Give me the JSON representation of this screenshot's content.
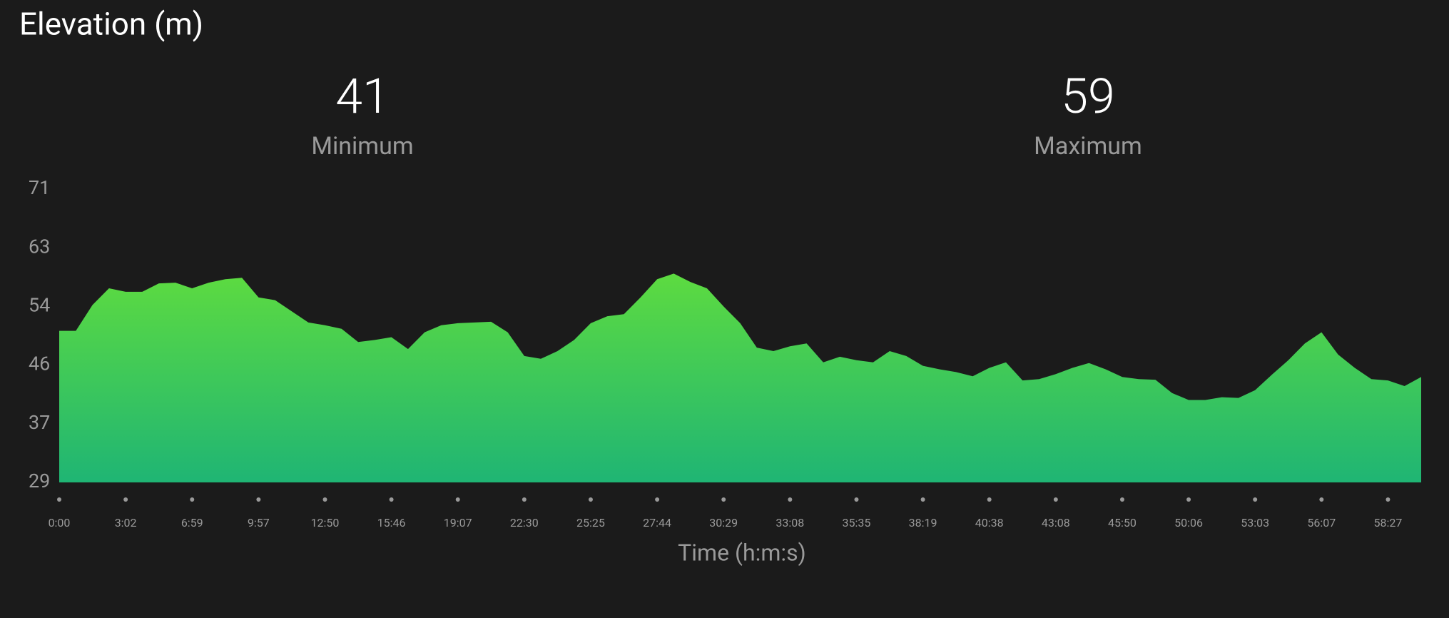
{
  "title": "Elevation (m)",
  "stats": [
    {
      "value": 41,
      "label": "Minimum"
    },
    {
      "value": 59,
      "label": "Maximum"
    }
  ],
  "chart_data": {
    "type": "area",
    "x_label": "Time (h:m:s)",
    "categories": [
      "0:00",
      null,
      null,
      null,
      "3:02",
      null,
      null,
      null,
      "6:59",
      null,
      null,
      null,
      "9:57",
      null,
      null,
      null,
      "12:50",
      null,
      null,
      null,
      "15:46",
      null,
      null,
      null,
      "19:07",
      null,
      null,
      null,
      "22:30",
      null,
      null,
      null,
      "25:25",
      null,
      null,
      null,
      "27:44",
      null,
      null,
      null,
      "30:29",
      null,
      null,
      null,
      "33:08",
      null,
      null,
      null,
      "35:35",
      null,
      null,
      null,
      "38:19",
      null,
      null,
      null,
      "40:38",
      null,
      null,
      null,
      "43:08",
      null,
      null,
      null,
      "45:50",
      null,
      null,
      null,
      "50:06",
      null,
      null,
      null,
      "53:03",
      null,
      null,
      null,
      "56:07",
      null,
      null,
      null,
      "58:27",
      null,
      null
    ],
    "values": [
      50.7,
      50.7,
      54.4,
      56.8,
      56.3,
      56.3,
      57.5,
      57.6,
      56.8,
      57.6,
      58.1,
      58.3,
      55.5,
      55.1,
      53.5,
      51.9,
      51.5,
      51.0,
      49.1,
      49.4,
      49.8,
      48.1,
      50.5,
      51.5,
      51.8,
      51.9,
      52.0,
      50.5,
      47.1,
      46.7,
      47.8,
      49.4,
      51.8,
      52.8,
      53.1,
      55.5,
      58.1,
      58.9,
      57.7,
      56.8,
      54.2,
      51.8,
      48.3,
      47.8,
      48.5,
      48.9,
      46.2,
      47.0,
      46.5,
      46.2,
      47.8,
      47.1,
      45.7,
      45.2,
      44.8,
      44.2,
      45.4,
      46.2,
      43.6,
      43.8,
      44.5,
      45.4,
      46.1,
      45.2,
      44.1,
      43.8,
      43.7,
      41.8,
      40.8,
      40.8,
      41.2,
      41.1,
      42.2,
      44.4,
      46.5,
      48.9,
      50.5,
      47.3,
      45.4,
      43.8,
      43.6,
      42.8,
      44.1
    ],
    "ylim": [
      29,
      71
    ],
    "yticks": [
      29,
      {
        "value": 37.4,
        "label": "37"
      },
      {
        "value": 45.8,
        "label": "46"
      },
      {
        "value": 54.2,
        "label": "54"
      },
      {
        "value": 62.6,
        "label": "63"
      },
      71
    ],
    "color": [
      "#5ddb40",
      "#1fb574"
    ],
    "grid": false
  }
}
